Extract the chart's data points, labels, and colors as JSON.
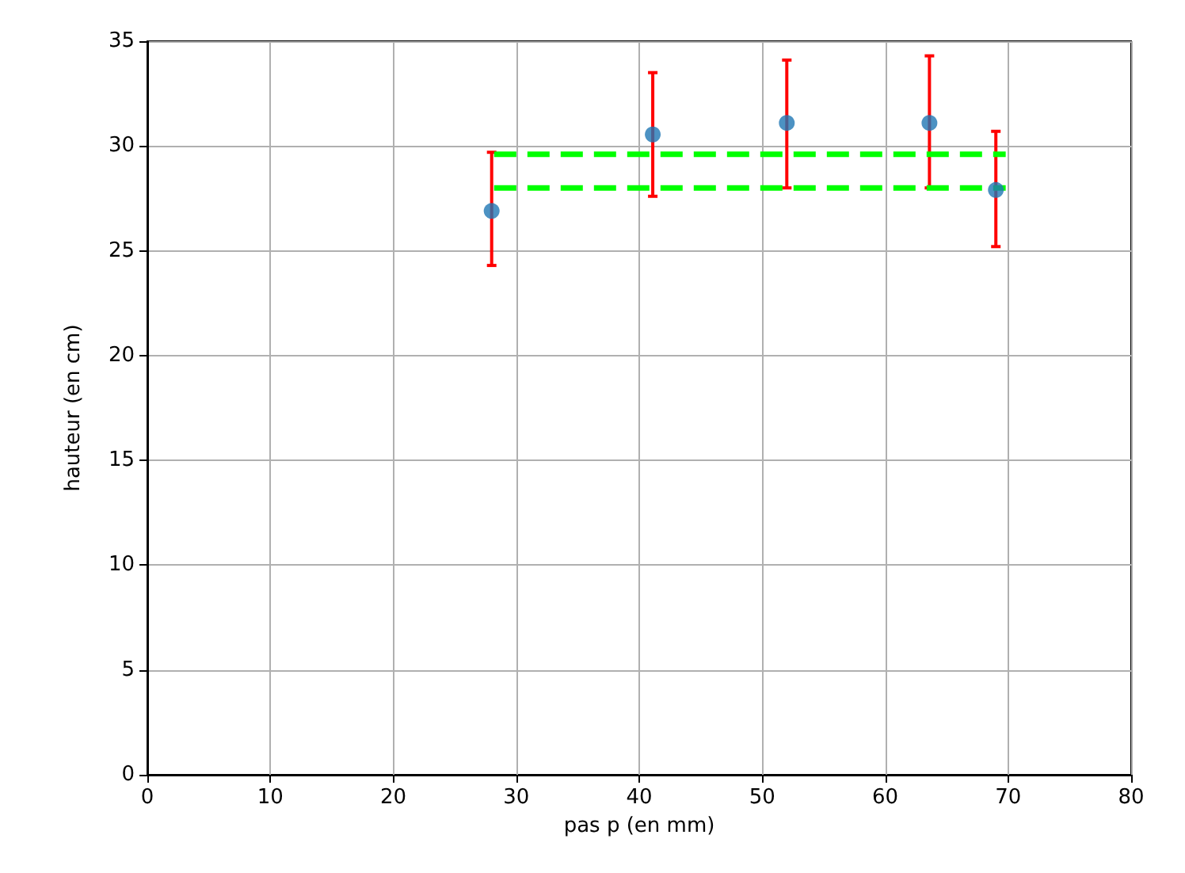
{
  "chart_data": {
    "type": "scatter",
    "xlabel": "pas p (en mm)",
    "ylabel": "hauteur (en cm)",
    "xlim": [
      0,
      80
    ],
    "xticks": [
      0,
      10,
      20,
      30,
      40,
      50,
      60,
      70,
      80
    ],
    "ylim": [
      0,
      35
    ],
    "yticks": [
      0,
      5,
      10,
      15,
      20,
      25,
      30,
      35
    ],
    "grid": true,
    "series": [
      {
        "color": "#1f77b4",
        "marker": "circle",
        "x": [
          28.0,
          41.1,
          52.0,
          63.6,
          69.0
        ],
        "values": [
          26.9,
          30.55,
          31.1,
          31.1,
          27.9
        ],
        "errors": [
          [
            24.3,
            29.7
          ],
          [
            27.6,
            33.5
          ],
          [
            28.0,
            34.1
          ],
          [
            28.0,
            34.3
          ],
          [
            25.2,
            30.7
          ]
        ]
      },
      {
        "type": "line",
        "color": "#00ff00",
        "line_style": "dashed",
        "marker": "none",
        "x": [
          28.2,
          69.8
        ],
        "values": [
          29.6,
          29.6
        ]
      },
      {
        "type": "line",
        "color": "#00ff00",
        "line_style": "dashed",
        "marker": "none",
        "x": [
          28.2,
          69.8
        ],
        "values": [
          28.0,
          28.0
        ]
      }
    ]
  }
}
